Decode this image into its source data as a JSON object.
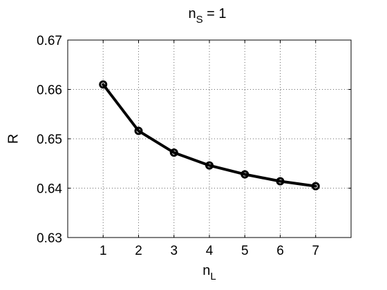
{
  "chart_data": {
    "type": "line",
    "title": {
      "main": "n",
      "sub": "S",
      "rest": " = 1"
    },
    "xlabel": {
      "main": "n",
      "sub": "L"
    },
    "ylabel": "R",
    "xlim": [
      0,
      8
    ],
    "ylim": [
      0.63,
      0.67
    ],
    "xticks": [
      "1",
      "2",
      "3",
      "4",
      "5",
      "6",
      "7"
    ],
    "xtick_values": [
      1,
      2,
      3,
      4,
      5,
      6,
      7
    ],
    "yticks": [
      "0.63",
      "0.64",
      "0.65",
      "0.66",
      "0.67"
    ],
    "ytick_values": [
      0.63,
      0.64,
      0.65,
      0.66,
      0.67
    ],
    "grid": true,
    "series": [
      {
        "x": [
          1,
          2,
          3,
          4,
          5,
          6,
          7
        ],
        "values": [
          0.661,
          0.6516,
          0.6472,
          0.6446,
          0.6428,
          0.6414,
          0.6404
        ],
        "color": "#000000",
        "marker": "circle"
      }
    ]
  }
}
